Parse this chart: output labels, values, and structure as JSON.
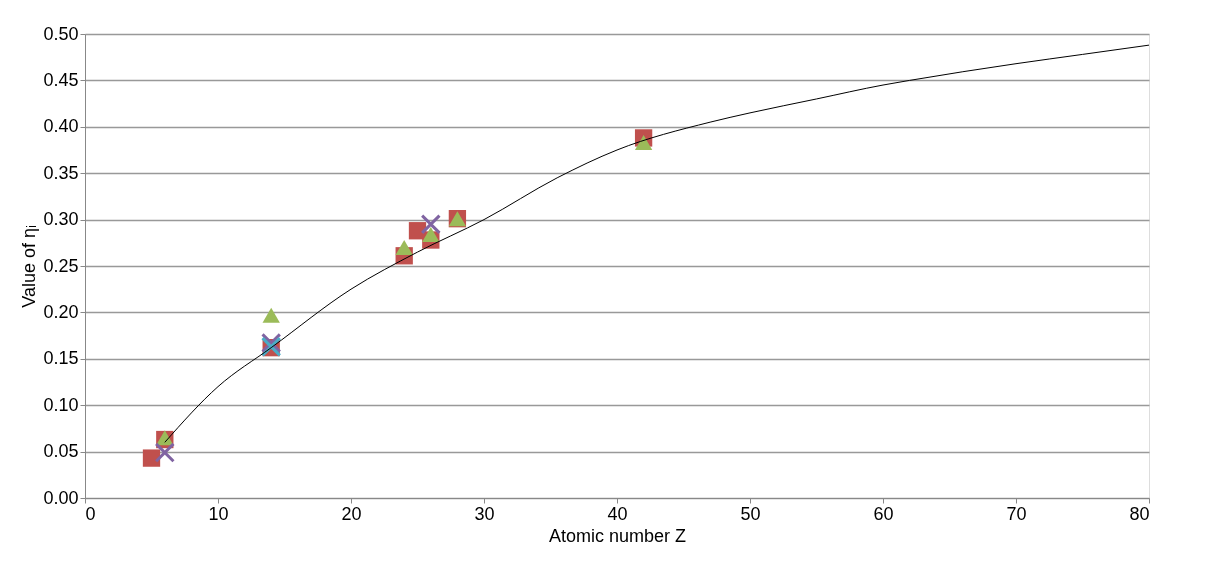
{
  "chart_data": {
    "type": "scatter",
    "xlabel": "Atomic number Z",
    "ylabel": "Value of ηᵢ",
    "xlim": [
      0,
      80
    ],
    "xticks": [
      0,
      10,
      20,
      30,
      40,
      50,
      60,
      70,
      80
    ],
    "ylim": [
      0,
      0.5
    ],
    "yticks": [
      {
        "value": 0,
        "label": "0.00"
      },
      0.05,
      {
        "value": 0.1,
        "label": "0.10"
      },
      0.15,
      {
        "value": 0.2,
        "label": "0.20"
      },
      0.25,
      {
        "value": 0.3,
        "label": "0.30"
      },
      0.35,
      {
        "value": 0.4,
        "label": "0.40"
      },
      0.45,
      {
        "value": 0.5,
        "label": "0.50"
      }
    ],
    "grid": "y",
    "series": [
      {
        "type": "line",
        "color": "#000000",
        "marker": "none",
        "line_style": "solid",
        "x": [
          6,
          10,
          14,
          20,
          25,
          30,
          35.5,
          40,
          47,
          50,
          55,
          60,
          62,
          70,
          75,
          80
        ],
        "values": [
          0.06,
          0.12,
          0.162,
          0.225,
          0.265,
          0.3,
          0.345,
          0.375,
          0.405,
          0.415,
          0.43,
          0.445,
          0.45,
          0.468,
          0.478,
          0.488
        ]
      },
      {
        "color": "#c0504d",
        "marker": "square",
        "x": [
          5,
          6,
          14,
          24,
          25,
          26,
          28,
          42
        ],
        "values": [
          0.043,
          0.063,
          0.162,
          0.261,
          0.288,
          0.278,
          0.301,
          0.388
        ]
      },
      {
        "color": "#9bbb59",
        "marker": "triangle",
        "x": [
          6,
          14,
          24,
          26,
          28,
          42
        ],
        "values": [
          0.065,
          0.197,
          0.27,
          0.284,
          0.301,
          0.383
        ]
      },
      {
        "color": "#8064a2",
        "marker": "cross",
        "x": [
          6,
          14,
          26
        ],
        "values": [
          0.049,
          0.167,
          0.295
        ]
      },
      {
        "color": "#4bacc6",
        "marker": "cross",
        "x": [
          14
        ],
        "values": [
          0.163
        ]
      }
    ]
  }
}
